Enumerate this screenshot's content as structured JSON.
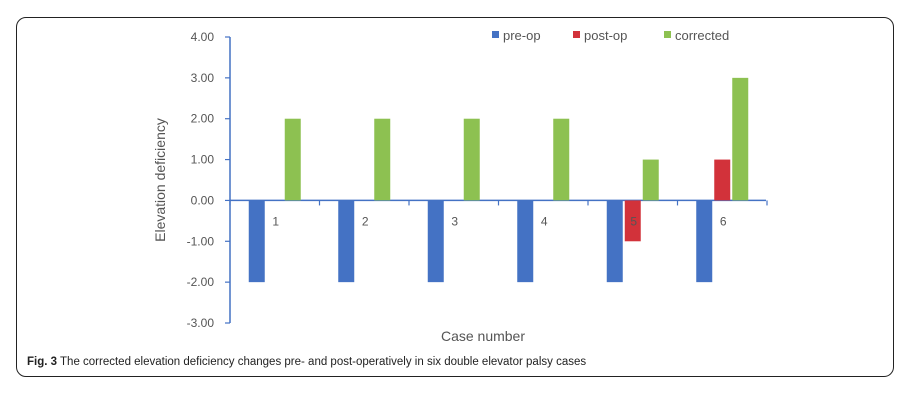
{
  "chart_data": {
    "type": "bar",
    "categories": [
      "1",
      "2",
      "3",
      "4",
      "5",
      "6"
    ],
    "series": [
      {
        "name": "pre-op",
        "color": "#4472C4",
        "values": [
          -2,
          -2,
          -2,
          -2,
          -2,
          -2
        ]
      },
      {
        "name": "post-op",
        "color": "#D2323A",
        "values": [
          0,
          0,
          0,
          0,
          -1,
          1
        ]
      },
      {
        "name": "corrected",
        "color": "#8DC151",
        "values": [
          2,
          2,
          2,
          2,
          1,
          3
        ]
      }
    ],
    "y_ticks": [
      "4.00",
      "3.00",
      "2.00",
      "1.00",
      "0.00",
      "-1.00",
      "-2.00",
      "-3.00"
    ],
    "ylim": [
      -3,
      4
    ],
    "xlabel": "Case number",
    "ylabel": "Elevation deficiency",
    "grid": false,
    "legend_position": "top-right",
    "axis_color": "#4472C4"
  },
  "caption": {
    "label": "Fig. 3",
    "text": " The corrected elevation deficiency changes pre- and post-operatively in six double elevator palsy cases"
  }
}
